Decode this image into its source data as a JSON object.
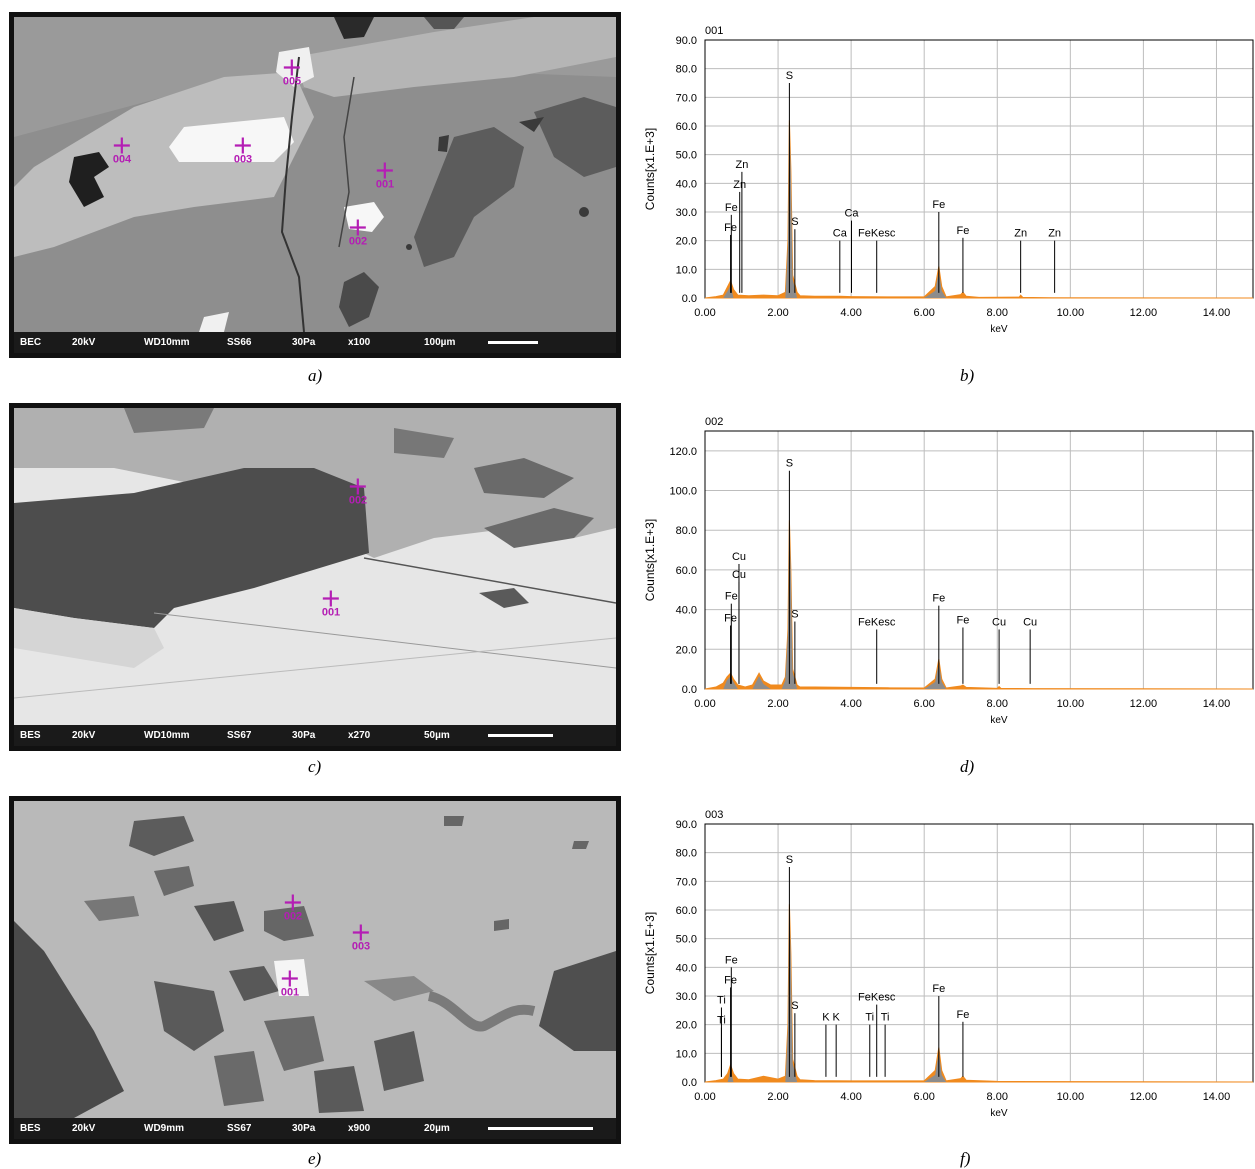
{
  "panels": [
    {
      "caption": "a)",
      "info_bar": {
        "detector": "BEC",
        "voltage": "20kV",
        "wd": "WD10mm",
        "spot": "SS66",
        "pressure": "30Pa",
        "magnification": "x100",
        "scale": "100µm"
      },
      "points": [
        "001",
        "002",
        "003",
        "004",
        "005"
      ]
    },
    {
      "caption": "c)",
      "info_bar": {
        "detector": "BES",
        "voltage": "20kV",
        "wd": "WD10mm",
        "spot": "SS67",
        "pressure": "30Pa",
        "magnification": "x270",
        "scale": "50µm"
      },
      "points": [
        "001",
        "002"
      ]
    },
    {
      "caption": "e)",
      "info_bar": {
        "detector": "BES",
        "voltage": "20kV",
        "wd": "WD9mm",
        "spot": "SS67",
        "pressure": "30Pa",
        "magnification": "x900",
        "scale": "20µm"
      },
      "points": [
        "001",
        "002",
        "003"
      ]
    }
  ],
  "chart_data": [
    {
      "type": "area",
      "caption": "b)",
      "title": "001",
      "xlabel": "keV",
      "ylabel": "Counts[x1.E+3]",
      "xlim": [
        0,
        15
      ],
      "ylim": [
        0,
        90
      ],
      "xticks": [
        "0.00",
        "2.00",
        "4.00",
        "6.00",
        "8.00",
        "10.00",
        "12.00",
        "14.00"
      ],
      "yticks": [
        "0.0",
        "10.0",
        "20.0",
        "30.0",
        "40.0",
        "50.0",
        "60.0",
        "70.0",
        "80.0",
        "90.0"
      ],
      "series": {
        "x": [
          0,
          0.3,
          0.5,
          0.62,
          0.7,
          0.78,
          0.9,
          1.2,
          1.6,
          2.0,
          2.2,
          2.27,
          2.31,
          2.35,
          2.4,
          2.46,
          2.52,
          2.6,
          3.0,
          3.7,
          4.0,
          5.0,
          6.0,
          6.3,
          6.4,
          6.48,
          6.6,
          7.0,
          7.06,
          7.15,
          7.5,
          8.6,
          8.64,
          8.7,
          9.5,
          15
        ],
        "y": [
          0,
          0.5,
          1,
          4,
          6,
          3,
          1,
          0.8,
          1,
          0.8,
          2,
          20,
          62,
          45,
          8,
          5,
          2,
          0.8,
          0.6,
          0.6,
          0.5,
          0.4,
          0.4,
          4,
          11,
          4,
          0.4,
          1.2,
          2,
          0.6,
          0.2,
          0.3,
          1,
          0.2,
          0.1,
          0
        ]
      },
      "peak_labels": [
        {
          "element": "Zn",
          "keV": 1.01,
          "level": 44
        },
        {
          "element": "Zn",
          "keV": 0.95,
          "level": 37
        },
        {
          "element": "Fe",
          "keV": 0.72,
          "level": 29
        },
        {
          "element": "Fe",
          "keV": 0.7,
          "level": 22
        },
        {
          "element": "S",
          "keV": 2.31,
          "level": 75
        },
        {
          "element": "S",
          "keV": 2.46,
          "level": 24
        },
        {
          "element": "Ca",
          "keV": 4.01,
          "level": 27
        },
        {
          "element": "Ca",
          "keV": 3.69,
          "level": 20
        },
        {
          "element": "FeKesc",
          "keV": 4.7,
          "level": 20
        },
        {
          "element": "Fe",
          "keV": 6.4,
          "level": 30
        },
        {
          "element": "Fe",
          "keV": 7.06,
          "level": 21
        },
        {
          "element": "Zn",
          "keV": 8.64,
          "level": 20
        },
        {
          "element": "Zn",
          "keV": 9.57,
          "level": 20
        }
      ]
    },
    {
      "type": "area",
      "caption": "d)",
      "title": "002",
      "xlabel": "keV",
      "ylabel": "Counts[x1.E+3]",
      "xlim": [
        0,
        15
      ],
      "ylim": [
        0,
        130
      ],
      "xticks": [
        "0.00",
        "2.00",
        "4.00",
        "6.00",
        "8.00",
        "10.00",
        "12.00",
        "14.00"
      ],
      "yticks": [
        "0.0",
        "20.0",
        "40.0",
        "60.0",
        "80.0",
        "100.0",
        "120.0"
      ],
      "series": {
        "x": [
          0,
          0.3,
          0.5,
          0.6,
          0.7,
          0.78,
          0.9,
          1.1,
          1.3,
          1.48,
          1.6,
          1.8,
          2.1,
          2.2,
          2.27,
          2.31,
          2.35,
          2.4,
          2.46,
          2.52,
          2.6,
          3.0,
          4.0,
          5.0,
          6.0,
          6.3,
          6.4,
          6.48,
          6.6,
          7.0,
          7.06,
          7.15,
          8.0,
          8.05,
          8.1,
          9.0,
          15
        ],
        "y": [
          0,
          1,
          3,
          6,
          8,
          5,
          2,
          1,
          2,
          8,
          4,
          2,
          2,
          6,
          30,
          85,
          60,
          10,
          6,
          2,
          1,
          1,
          0.8,
          0.6,
          0.5,
          5,
          15,
          5,
          0.5,
          1.5,
          2,
          0.8,
          0.3,
          1.2,
          0.3,
          0.2,
          0
        ]
      },
      "peak_labels": [
        {
          "element": "Cu",
          "keV": 0.93,
          "level": 63
        },
        {
          "element": "Cu",
          "keV": 0.93,
          "level": 54
        },
        {
          "element": "Fe",
          "keV": 0.72,
          "level": 43
        },
        {
          "element": "Fe",
          "keV": 0.7,
          "level": 32
        },
        {
          "element": "S",
          "keV": 2.31,
          "level": 110
        },
        {
          "element": "S",
          "keV": 2.46,
          "level": 34
        },
        {
          "element": "FeKesc",
          "keV": 4.7,
          "level": 30
        },
        {
          "element": "Fe",
          "keV": 6.4,
          "level": 42
        },
        {
          "element": "Fe",
          "keV": 7.06,
          "level": 31
        },
        {
          "element": "Cu",
          "keV": 8.05,
          "level": 30
        },
        {
          "element": "Cu",
          "keV": 8.9,
          "level": 30
        }
      ]
    },
    {
      "type": "area",
      "caption": "f)",
      "title": "003",
      "xlabel": "keV",
      "ylabel": "Counts[x1.E+3]",
      "xlim": [
        0,
        15
      ],
      "ylim": [
        0,
        90
      ],
      "xticks": [
        "0.00",
        "2.00",
        "4.00",
        "6.00",
        "8.00",
        "10.00",
        "12.00",
        "14.00"
      ],
      "yticks": [
        "0.0",
        "10.0",
        "20.0",
        "30.0",
        "40.0",
        "50.0",
        "60.0",
        "70.0",
        "80.0",
        "90.0"
      ],
      "series": {
        "x": [
          0,
          0.3,
          0.5,
          0.62,
          0.7,
          0.78,
          0.9,
          1.2,
          1.6,
          2.0,
          2.2,
          2.27,
          2.31,
          2.35,
          2.4,
          2.46,
          2.52,
          2.6,
          3.0,
          4.0,
          5.0,
          6.0,
          6.3,
          6.4,
          6.48,
          6.6,
          7.0,
          7.06,
          7.15,
          8.0,
          15
        ],
        "y": [
          0,
          0.5,
          1,
          3,
          6,
          3,
          1,
          0.8,
          2,
          1,
          2,
          20,
          62,
          45,
          8,
          5,
          2,
          0.8,
          0.5,
          0.4,
          0.4,
          0.4,
          4,
          12,
          4,
          0.4,
          1.2,
          2,
          0.6,
          0.2,
          0
        ]
      },
      "peak_labels": [
        {
          "element": "Fe",
          "keV": 0.72,
          "level": 40
        },
        {
          "element": "Fe",
          "keV": 0.7,
          "level": 33
        },
        {
          "element": "Ti",
          "keV": 0.45,
          "level": 26
        },
        {
          "element": "Ti",
          "keV": 0.45,
          "level": 19
        },
        {
          "element": "S",
          "keV": 2.31,
          "level": 75
        },
        {
          "element": "S",
          "keV": 2.46,
          "level": 24
        },
        {
          "element": "K",
          "keV": 3.31,
          "level": 20
        },
        {
          "element": "K",
          "keV": 3.59,
          "level": 20
        },
        {
          "element": "FeKesc",
          "keV": 4.7,
          "level": 27
        },
        {
          "element": "Ti",
          "keV": 4.51,
          "level": 20
        },
        {
          "element": "Ti",
          "keV": 4.93,
          "level": 20
        },
        {
          "element": "Fe",
          "keV": 6.4,
          "level": 30
        },
        {
          "element": "Fe",
          "keV": 7.06,
          "level": 21
        }
      ]
    }
  ],
  "colors": {
    "spectrum_fill": "#f08a1e",
    "peak_fill": "#8c8c8c",
    "marker": "#b41eb4",
    "grid": "#bdbdbd"
  }
}
